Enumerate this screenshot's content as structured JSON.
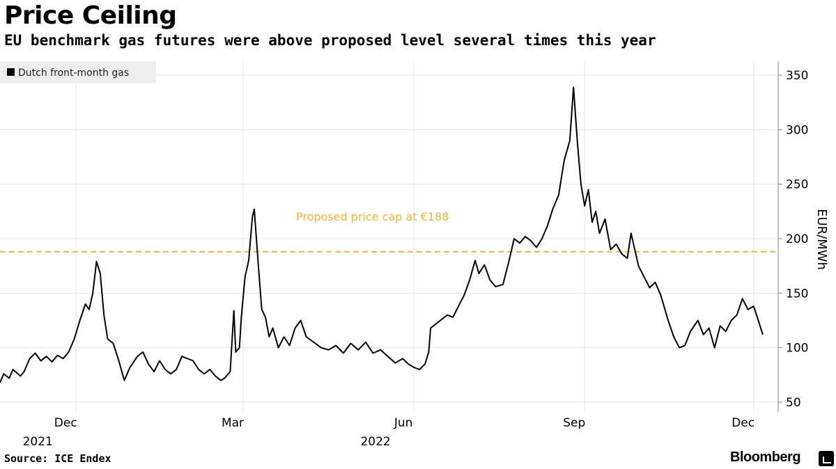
{
  "chart_data": {
    "type": "line",
    "title": "Price Ceiling",
    "subtitle": "EU benchmark gas futures were above proposed level several times this year",
    "ylabel": "EUR/MWh",
    "ylim": [
      40,
      360
    ],
    "yticks": [
      50,
      100,
      150,
      200,
      250,
      300,
      350
    ],
    "x_range": [
      "2021-10-21",
      "2022-12-06"
    ],
    "x_ticks": [
      {
        "date": "2021-12-01",
        "label": "Dec",
        "year": "2021"
      },
      {
        "date": "2022-03-01",
        "label": "Mar",
        "year": ""
      },
      {
        "date": "2022-06-01",
        "label": "Jun",
        "year": "2022"
      },
      {
        "date": "2022-09-01",
        "label": "Sep",
        "year": ""
      },
      {
        "date": "2022-12-01",
        "label": "Dec",
        "year": ""
      }
    ],
    "legend": {
      "position": "top-left",
      "entries": [
        "Dutch front-month gas"
      ]
    },
    "annotation": {
      "label": "Proposed price cap at €188",
      "value": 188,
      "color": "#f5b335"
    },
    "grid": true,
    "series": [
      {
        "name": "Dutch front-month gas",
        "color": "#000000",
        "points": [
          [
            "2021-10-21",
            68
          ],
          [
            "2021-10-23",
            76
          ],
          [
            "2021-10-26",
            72
          ],
          [
            "2021-10-28",
            80
          ],
          [
            "2021-11-01",
            74
          ],
          [
            "2021-11-03",
            78
          ],
          [
            "2021-11-06",
            90
          ],
          [
            "2021-11-09",
            95
          ],
          [
            "2021-11-12",
            88
          ],
          [
            "2021-11-15",
            92
          ],
          [
            "2021-11-18",
            87
          ],
          [
            "2021-11-21",
            93
          ],
          [
            "2021-11-24",
            90
          ],
          [
            "2021-11-27",
            96
          ],
          [
            "2021-11-30",
            108
          ],
          [
            "2021-12-03",
            125
          ],
          [
            "2021-12-06",
            140
          ],
          [
            "2021-12-08",
            135
          ],
          [
            "2021-12-10",
            150
          ],
          [
            "2021-12-12",
            179
          ],
          [
            "2021-12-14",
            168
          ],
          [
            "2021-12-16",
            130
          ],
          [
            "2021-12-18",
            108
          ],
          [
            "2021-12-21",
            104
          ],
          [
            "2021-12-24",
            88
          ],
          [
            "2021-12-27",
            70
          ],
          [
            "2021-12-30",
            82
          ],
          [
            "2022-01-03",
            92
          ],
          [
            "2022-01-06",
            96
          ],
          [
            "2022-01-09",
            85
          ],
          [
            "2022-01-12",
            78
          ],
          [
            "2022-01-15",
            88
          ],
          [
            "2022-01-18",
            80
          ],
          [
            "2022-01-21",
            76
          ],
          [
            "2022-01-24",
            80
          ],
          [
            "2022-01-27",
            92
          ],
          [
            "2022-01-30",
            90
          ],
          [
            "2022-02-02",
            88
          ],
          [
            "2022-02-05",
            80
          ],
          [
            "2022-02-08",
            76
          ],
          [
            "2022-02-11",
            80
          ],
          [
            "2022-02-14",
            74
          ],
          [
            "2022-02-17",
            70
          ],
          [
            "2022-02-19",
            72
          ],
          [
            "2022-02-22",
            78
          ],
          [
            "2022-02-24",
            134
          ],
          [
            "2022-02-25",
            96
          ],
          [
            "2022-02-27",
            100
          ],
          [
            "2022-02-28",
            128
          ],
          [
            "2022-03-02",
            165
          ],
          [
            "2022-03-04",
            180
          ],
          [
            "2022-03-06",
            220
          ],
          [
            "2022-03-07",
            227
          ],
          [
            "2022-03-09",
            180
          ],
          [
            "2022-03-11",
            135
          ],
          [
            "2022-03-13",
            128
          ],
          [
            "2022-03-15",
            110
          ],
          [
            "2022-03-17",
            118
          ],
          [
            "2022-03-20",
            100
          ],
          [
            "2022-03-23",
            110
          ],
          [
            "2022-03-26",
            102
          ],
          [
            "2022-03-29",
            118
          ],
          [
            "2022-04-01",
            125
          ],
          [
            "2022-04-04",
            110
          ],
          [
            "2022-04-08",
            105
          ],
          [
            "2022-04-12",
            100
          ],
          [
            "2022-04-16",
            98
          ],
          [
            "2022-04-20",
            102
          ],
          [
            "2022-04-24",
            95
          ],
          [
            "2022-04-28",
            104
          ],
          [
            "2022-05-02",
            98
          ],
          [
            "2022-05-06",
            105
          ],
          [
            "2022-05-10",
            95
          ],
          [
            "2022-05-14",
            98
          ],
          [
            "2022-05-18",
            92
          ],
          [
            "2022-05-22",
            86
          ],
          [
            "2022-05-26",
            90
          ],
          [
            "2022-05-29",
            85
          ],
          [
            "2022-06-01",
            82
          ],
          [
            "2022-06-04",
            80
          ],
          [
            "2022-06-07",
            85
          ],
          [
            "2022-06-09",
            96
          ],
          [
            "2022-06-10",
            118
          ],
          [
            "2022-06-13",
            122
          ],
          [
            "2022-06-16",
            126
          ],
          [
            "2022-06-19",
            130
          ],
          [
            "2022-06-22",
            128
          ],
          [
            "2022-06-25",
            138
          ],
          [
            "2022-06-28",
            148
          ],
          [
            "2022-07-01",
            162
          ],
          [
            "2022-07-04",
            180
          ],
          [
            "2022-07-06",
            168
          ],
          [
            "2022-07-09",
            176
          ],
          [
            "2022-07-12",
            162
          ],
          [
            "2022-07-15",
            156
          ],
          [
            "2022-07-19",
            158
          ],
          [
            "2022-07-22",
            178
          ],
          [
            "2022-07-25",
            200
          ],
          [
            "2022-07-28",
            196
          ],
          [
            "2022-07-31",
            202
          ],
          [
            "2022-08-03",
            198
          ],
          [
            "2022-08-06",
            192
          ],
          [
            "2022-08-09",
            200
          ],
          [
            "2022-08-12",
            212
          ],
          [
            "2022-08-15",
            228
          ],
          [
            "2022-08-18",
            240
          ],
          [
            "2022-08-21",
            272
          ],
          [
            "2022-08-24",
            290
          ],
          [
            "2022-08-26",
            339
          ],
          [
            "2022-08-28",
            290
          ],
          [
            "2022-08-30",
            250
          ],
          [
            "2022-09-01",
            230
          ],
          [
            "2022-09-03",
            245
          ],
          [
            "2022-09-05",
            215
          ],
          [
            "2022-09-07",
            225
          ],
          [
            "2022-09-09",
            205
          ],
          [
            "2022-09-12",
            218
          ],
          [
            "2022-09-15",
            190
          ],
          [
            "2022-09-18",
            195
          ],
          [
            "2022-09-21",
            186
          ],
          [
            "2022-09-24",
            182
          ],
          [
            "2022-09-26",
            205
          ],
          [
            "2022-09-28",
            190
          ],
          [
            "2022-09-30",
            175
          ],
          [
            "2022-10-03",
            165
          ],
          [
            "2022-10-06",
            155
          ],
          [
            "2022-10-09",
            160
          ],
          [
            "2022-10-12",
            148
          ],
          [
            "2022-10-16",
            125
          ],
          [
            "2022-10-19",
            110
          ],
          [
            "2022-10-22",
            100
          ],
          [
            "2022-10-25",
            102
          ],
          [
            "2022-10-28",
            115
          ],
          [
            "2022-11-01",
            125
          ],
          [
            "2022-11-04",
            112
          ],
          [
            "2022-11-07",
            118
          ],
          [
            "2022-11-10",
            100
          ],
          [
            "2022-11-13",
            120
          ],
          [
            "2022-11-16",
            115
          ],
          [
            "2022-11-19",
            125
          ],
          [
            "2022-11-22",
            130
          ],
          [
            "2022-11-25",
            145
          ],
          [
            "2022-11-28",
            135
          ],
          [
            "2022-12-01",
            138
          ],
          [
            "2022-12-03",
            128
          ],
          [
            "2022-12-06",
            112
          ]
        ]
      }
    ]
  },
  "footer": {
    "source": "Source: ICE Endex",
    "brand": "Bloomberg"
  }
}
